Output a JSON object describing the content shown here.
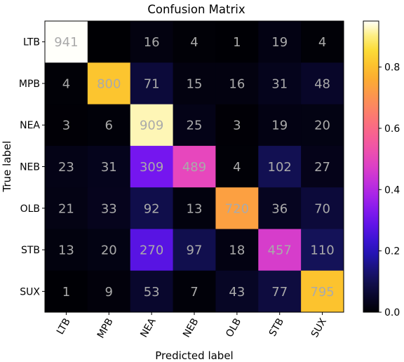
{
  "chart_data": {
    "type": "heatmap",
    "title": "Confusion Matrix",
    "xlabel": "Predicted label",
    "ylabel": "True label",
    "x_categories": [
      "LTB",
      "MPB",
      "NEA",
      "NEB",
      "OLB",
      "STB",
      "SUX"
    ],
    "y_categories": [
      "LTB",
      "MPB",
      "NEA",
      "NEB",
      "OLB",
      "STB",
      "SUX"
    ],
    "matrix": [
      [
        941,
        0,
        16,
        4,
        1,
        19,
        4
      ],
      [
        4,
        800,
        71,
        15,
        16,
        31,
        48
      ],
      [
        3,
        6,
        909,
        25,
        3,
        19,
        20
      ],
      [
        23,
        31,
        309,
        489,
        4,
        102,
        27
      ],
      [
        21,
        33,
        92,
        13,
        720,
        36,
        70
      ],
      [
        13,
        20,
        270,
        97,
        18,
        457,
        110
      ],
      [
        1,
        9,
        53,
        7,
        43,
        77,
        795
      ]
    ],
    "colormap": "plasma",
    "colorbar": {
      "range": [
        0,
        0.95
      ],
      "ticks": [
        0.0,
        0.2,
        0.4,
        0.6,
        0.8
      ],
      "tick_labels": [
        "0.0",
        "0.2",
        "0.4",
        "0.6",
        "0.8"
      ]
    },
    "normalization": "row",
    "hidden_cells": [
      [
        0,
        1
      ]
    ]
  }
}
